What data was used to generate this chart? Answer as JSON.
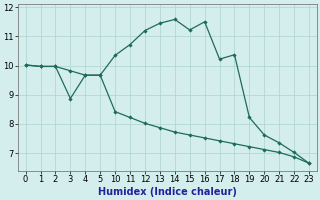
{
  "xlabel": "Humidex (Indice chaleur)",
  "background_color": "#d4eeed",
  "line_color": "#1e6b5e",
  "grid_color": "#aed4d0",
  "ylim": [
    6.4,
    12.1
  ],
  "yticks": [
    7,
    8,
    9,
    10,
    11,
    12
  ],
  "xtick_labels": [
    "0",
    "1",
    "2",
    "3",
    "4",
    "5",
    "10",
    "11",
    "12",
    "13",
    "14",
    "15",
    "16",
    "17",
    "18",
    "19",
    "20",
    "21",
    "22",
    "23"
  ],
  "line1_y": [
    10.02,
    9.97,
    9.97,
    9.82,
    9.67,
    9.67,
    10.35,
    10.72,
    11.2,
    11.45,
    11.58,
    11.22,
    11.5,
    10.22,
    10.37,
    8.22,
    7.62,
    7.35,
    7.02,
    6.65
  ],
  "line2_y": [
    10.02,
    9.97,
    9.97,
    8.87,
    9.67,
    9.67,
    8.42,
    8.22,
    8.02,
    7.87,
    7.72,
    7.62,
    7.52,
    7.42,
    7.32,
    7.22,
    7.12,
    7.02,
    6.87,
    6.65
  ],
  "tick_fontsize": 6,
  "label_fontsize": 7,
  "linewidth": 0.9,
  "markersize": 2.2
}
